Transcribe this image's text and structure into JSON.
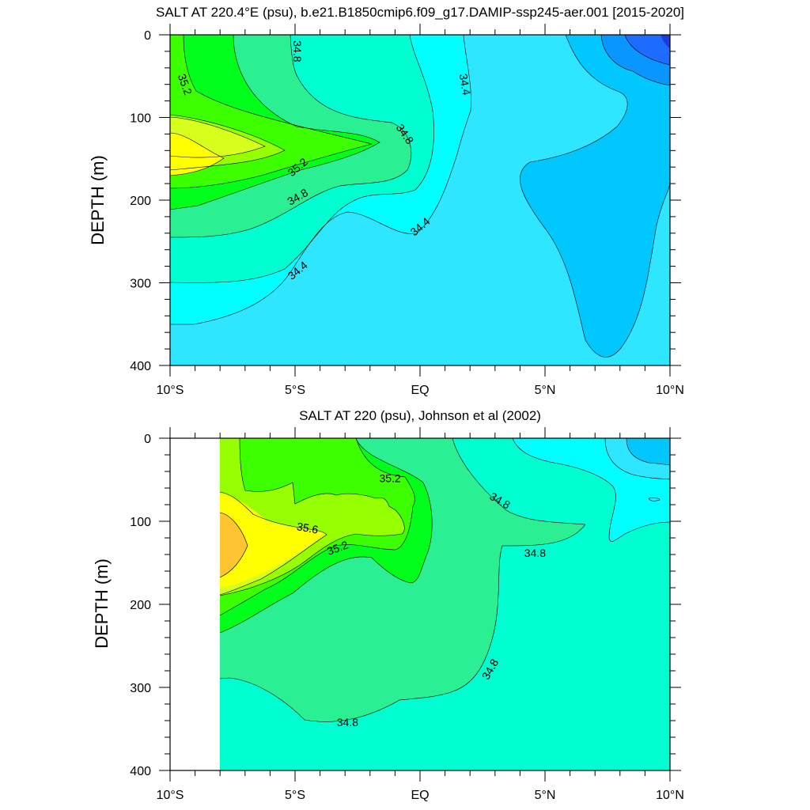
{
  "chart_data": [
    {
      "type": "contour",
      "title": "SALT AT 220.4°E (psu), b.e21.B1850cmip6.f09_g17.DAMIP-ssp245-aer.001 [2015-2020]",
      "ylabel": "DEPTH (m)",
      "xlabel": "",
      "x_ticks": [
        "10°S",
        "5°S",
        "EQ",
        "5°N",
        "10°N"
      ],
      "y_ticks": [
        "0",
        "100",
        "200",
        "300",
        "400"
      ],
      "xlim": [
        -10,
        10
      ],
      "ylim": [
        400,
        0
      ],
      "contour_interval": 0.2,
      "colors": [
        "#1e6cff",
        "#0a96ff",
        "#00c8ff",
        "#2ee6ff",
        "#00ffff",
        "#00ffd0",
        "#2bef93",
        "#00ff1a",
        "#3cff00",
        "#96ff00",
        "#d6ff1e",
        "#ffff00",
        "#ffc432"
      ],
      "contour_labels": [
        {
          "text": "34.8",
          "x": -4.9,
          "depth": 20,
          "angle": 90
        },
        {
          "text": "35.2",
          "x": -9.4,
          "depth": 60,
          "angle": 70
        },
        {
          "text": "34.4",
          "x": 1.8,
          "depth": 60,
          "angle": 80
        },
        {
          "text": "34.8",
          "x": -0.6,
          "depth": 120,
          "angle": 55
        },
        {
          "text": "35.2",
          "x": -4.9,
          "depth": 160,
          "angle": -40
        },
        {
          "text": "34.8",
          "x": -4.9,
          "depth": 196,
          "angle": -30
        },
        {
          "text": "34.4",
          "x": 0.0,
          "depth": 232,
          "angle": -40
        },
        {
          "text": "34.4",
          "x": -4.9,
          "depth": 285,
          "angle": -40
        }
      ]
    },
    {
      "type": "contour",
      "title": "SALT AT 220 (psu), Johnson et al (2002)",
      "ylabel": "DEPTH (m)",
      "xlabel": "",
      "x_ticks": [
        "10°S",
        "5°S",
        "EQ",
        "5°N",
        "10°N"
      ],
      "y_ticks": [
        "0",
        "100",
        "200",
        "300",
        "400"
      ],
      "xlim": [
        -10,
        10
      ],
      "ylim": [
        400,
        0
      ],
      "data_start_x": -8,
      "contour_interval": 0.2,
      "contour_labels": [
        {
          "text": "35.2",
          "x": -1.2,
          "depth": 48,
          "angle": 0
        },
        {
          "text": "34.8",
          "x": 3.2,
          "depth": 75,
          "angle": 30
        },
        {
          "text": "35.6",
          "x": -4.5,
          "depth": 108,
          "angle": 10
        },
        {
          "text": "35.2",
          "x": -3.3,
          "depth": 132,
          "angle": -20
        },
        {
          "text": "34.8",
          "x": 4.6,
          "depth": 138,
          "angle": 0
        },
        {
          "text": "34.8",
          "x": 2.8,
          "depth": 278,
          "angle": -60
        },
        {
          "text": "34.8",
          "x": -2.9,
          "depth": 342,
          "angle": 0
        }
      ]
    }
  ]
}
